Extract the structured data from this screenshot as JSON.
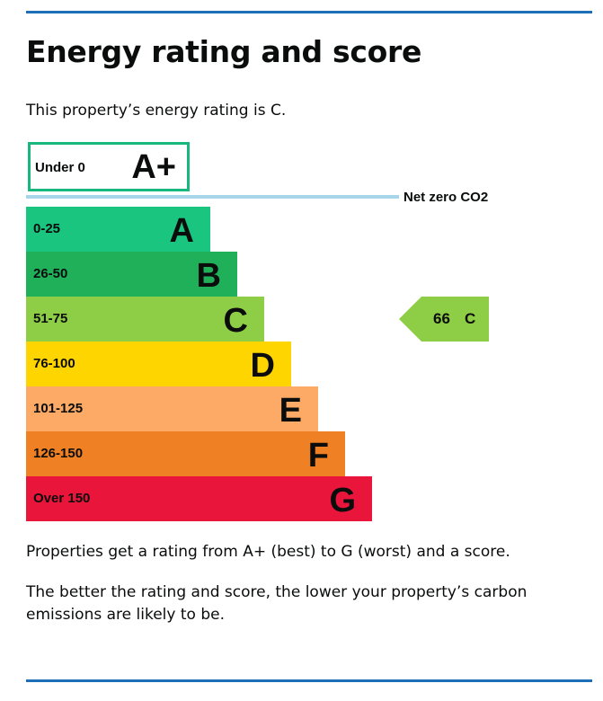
{
  "page": {
    "title": "Energy rating and score",
    "intro": "This property’s energy rating is C.",
    "explain_1": "Properties get a rating from A+ (best) to G (worst) and a score.",
    "explain_2": "The better the rating and score, the lower your property’s carbon emissions are likely to be."
  },
  "chart": {
    "aplus": {
      "range": "Under 0",
      "letter": "A+",
      "color": "#18b77e"
    },
    "net_zero_label": "Net zero CO2",
    "bands": [
      {
        "range": "0-25",
        "letter": "A",
        "color": "#19c57f"
      },
      {
        "range": "26-50",
        "letter": "B",
        "color": "#21b05a"
      },
      {
        "range": "51-75",
        "letter": "C",
        "color": "#8dce46"
      },
      {
        "range": "76-100",
        "letter": "D",
        "color": "#ffd500"
      },
      {
        "range": "101-125",
        "letter": "E",
        "color": "#fcaa65"
      },
      {
        "range": "126-150",
        "letter": "F",
        "color": "#ef8023"
      },
      {
        "range": "Over 150",
        "letter": "G",
        "color": "#e9153b"
      }
    ],
    "current": {
      "score": "66",
      "rating": "C",
      "color": "#8dce46"
    }
  },
  "colors": {
    "rule": "#1d70b8",
    "net_zero_line": "#a7d6ea"
  }
}
